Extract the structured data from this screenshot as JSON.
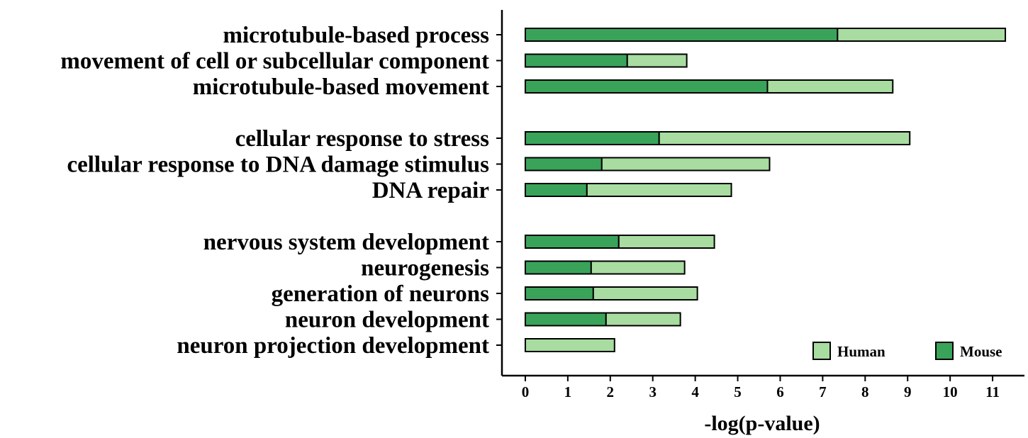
{
  "chart_data": {
    "type": "bar",
    "orientation": "horizontal",
    "stacked": true,
    "categories": [
      "microtubule-based process",
      "movement of cell or subcellular component",
      "microtubule-based movement",
      "cellular response to stress",
      "cellular response to DNA damage stimulus",
      "DNA repair",
      "nervous system development",
      "neurogenesis",
      "generation of neurons",
      "neuron development",
      "neuron projection development"
    ],
    "groups": [
      [
        0,
        1,
        2
      ],
      [
        3,
        4,
        5
      ],
      [
        6,
        7,
        8,
        9,
        10
      ]
    ],
    "series": [
      {
        "name": "Mouse",
        "color": "#3aa35a",
        "values": [
          7.35,
          2.4,
          5.7,
          3.15,
          1.8,
          1.45,
          2.2,
          1.55,
          1.6,
          1.9,
          0
        ]
      },
      {
        "name": "Human",
        "color": "#a8dca0",
        "values": [
          3.95,
          1.4,
          2.95,
          5.9,
          3.95,
          3.4,
          2.25,
          2.2,
          2.45,
          1.75,
          2.1
        ]
      }
    ],
    "xlabel": "-log(p-value)",
    "ylabel": "",
    "xlim": [
      -0.55,
      11.75
    ],
    "xticks": [
      0,
      1,
      2,
      3,
      4,
      5,
      6,
      7,
      8,
      9,
      10,
      11
    ],
    "legend": {
      "position": "bottom-right",
      "entries": [
        {
          "name": "Human",
          "color": "#a8dca0"
        },
        {
          "name": "Mouse",
          "color": "#3aa35a"
        }
      ]
    },
    "grid": false
  }
}
